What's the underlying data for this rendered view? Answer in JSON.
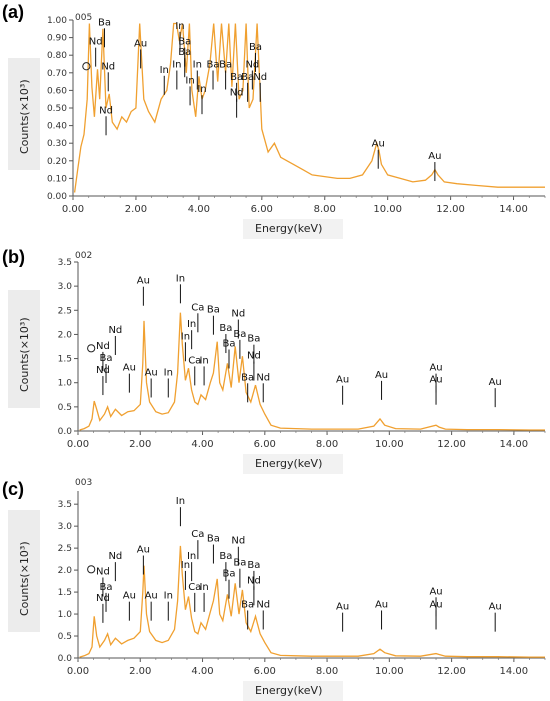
{
  "chart_data": [
    {
      "type": "line",
      "panel": "(a)",
      "spectrum_id": "005",
      "xlabel": "Energy(keV)",
      "ylabel": "Counts(×10³)",
      "xlim": [
        0,
        15
      ],
      "ylim": [
        0,
        1.0
      ],
      "xticks": [
        "0.00",
        "2.00",
        "4.00",
        "6.00",
        "8.00",
        "10.00",
        "12.00",
        "14.00"
      ],
      "yticks": [
        "0.00",
        "0.10",
        "0.20",
        "0.30",
        "0.40",
        "0.50",
        "0.60",
        "0.70",
        "0.80",
        "0.90",
        "1.00"
      ],
      "color": "#f0a030",
      "series": [
        {
          "x": [
            0.05,
            0.15,
            0.25,
            0.35,
            0.45,
            0.52,
            0.6,
            0.68,
            0.78,
            0.85,
            0.95,
            1.05,
            1.15,
            1.25,
            1.4,
            1.55,
            1.7,
            1.85,
            2.0,
            2.12,
            2.25,
            2.4,
            2.6,
            2.8,
            2.98,
            3.1,
            3.2,
            3.29,
            3.38,
            3.48,
            3.6,
            3.7,
            3.78,
            3.9,
            4.0,
            4.1,
            4.2,
            4.35,
            4.47,
            4.6,
            4.72,
            4.85,
            4.95,
            5.05,
            5.16,
            5.28,
            5.4,
            5.5,
            5.6,
            5.72,
            5.85,
            6.0,
            6.2,
            6.4,
            6.6,
            6.8,
            7.0,
            7.3,
            7.6,
            8.0,
            8.4,
            8.8,
            9.2,
            9.5,
            9.65,
            9.72,
            9.8,
            10.0,
            10.4,
            10.8,
            11.2,
            11.4,
            11.5,
            11.6,
            11.8,
            12.2,
            12.8,
            13.5,
            14.2,
            15.0
          ],
          "y": [
            0.02,
            0.15,
            0.28,
            0.35,
            0.55,
            0.98,
            0.62,
            0.45,
            0.72,
            0.55,
            0.95,
            0.5,
            0.58,
            0.42,
            0.38,
            0.45,
            0.42,
            0.48,
            0.5,
            0.98,
            0.55,
            0.48,
            0.42,
            0.55,
            0.6,
            0.75,
            0.98,
            0.98,
            0.88,
            0.98,
            0.7,
            0.98,
            0.6,
            0.45,
            0.68,
            0.55,
            0.6,
            0.75,
            0.98,
            0.65,
            0.98,
            0.7,
            0.98,
            0.62,
            0.98,
            0.55,
            0.6,
            0.98,
            0.5,
            0.55,
            0.98,
            0.38,
            0.25,
            0.3,
            0.22,
            0.2,
            0.18,
            0.15,
            0.12,
            0.11,
            0.1,
            0.1,
            0.12,
            0.2,
            0.3,
            0.26,
            0.18,
            0.12,
            0.1,
            0.08,
            0.09,
            0.12,
            0.15,
            0.12,
            0.08,
            0.07,
            0.06,
            0.05,
            0.05,
            0.05
          ]
        }
      ],
      "annotations": [
        {
          "label": "O",
          "x": 0.52,
          "y": 0.72,
          "circle": true
        },
        {
          "label": "Ba",
          "x": 1.0,
          "y": 0.97
        },
        {
          "label": "Nd",
          "x": 0.72,
          "y": 0.86
        },
        {
          "label": "Nd",
          "x": 1.12,
          "y": 0.72
        },
        {
          "label": "Nd",
          "x": 1.05,
          "y": 0.47
        },
        {
          "label": "Au",
          "x": 2.15,
          "y": 0.85
        },
        {
          "label": "In",
          "x": 2.9,
          "y": 0.7
        },
        {
          "label": "In",
          "x": 3.4,
          "y": 0.95
        },
        {
          "label": "In",
          "x": 3.3,
          "y": 0.73
        },
        {
          "label": "Ba",
          "x": 3.55,
          "y": 0.86
        },
        {
          "label": "Ba",
          "x": 3.55,
          "y": 0.8
        },
        {
          "label": "In",
          "x": 3.72,
          "y": 0.64
        },
        {
          "label": "In",
          "x": 3.95,
          "y": 0.73
        },
        {
          "label": "In",
          "x": 4.1,
          "y": 0.59
        },
        {
          "label": "Ba",
          "x": 4.45,
          "y": 0.73
        },
        {
          "label": "Ba",
          "x": 4.85,
          "y": 0.73
        },
        {
          "label": "Ba",
          "x": 5.2,
          "y": 0.66
        },
        {
          "label": "Nd",
          "x": 5.2,
          "y": 0.57
        },
        {
          "label": "Ba",
          "x": 5.55,
          "y": 0.66
        },
        {
          "label": "Nd",
          "x": 5.7,
          "y": 0.73
        },
        {
          "label": "Nd",
          "x": 5.95,
          "y": 0.66
        },
        {
          "label": "Ba",
          "x": 5.8,
          "y": 0.83
        },
        {
          "label": "Au",
          "x": 9.7,
          "y": 0.28
        },
        {
          "label": "Au",
          "x": 11.5,
          "y": 0.21
        }
      ]
    },
    {
      "type": "line",
      "panel": "(b)",
      "spectrum_id": "002",
      "xlabel": "Energy(keV)",
      "ylabel": "Counts(×10³)",
      "xlim": [
        0,
        15
      ],
      "ylim": [
        0,
        3.5
      ],
      "xticks": [
        "0.00",
        "2.00",
        "4.00",
        "6.00",
        "8.00",
        "10.00",
        "12.00",
        "14.00"
      ],
      "yticks": [
        "0.0",
        "0.5",
        "1.0",
        "1.5",
        "2.0",
        "2.5",
        "3.0",
        "3.5"
      ],
      "color": "#f0a030",
      "series": [
        {
          "x": [
            0.05,
            0.2,
            0.35,
            0.45,
            0.52,
            0.6,
            0.7,
            0.85,
            0.95,
            1.05,
            1.2,
            1.4,
            1.6,
            1.8,
            2.0,
            2.08,
            2.12,
            2.2,
            2.3,
            2.5,
            2.7,
            2.9,
            3.1,
            3.2,
            3.29,
            3.35,
            3.45,
            3.55,
            3.65,
            3.75,
            3.85,
            3.95,
            4.1,
            4.25,
            4.35,
            4.47,
            4.55,
            4.65,
            4.8,
            4.92,
            5.05,
            5.17,
            5.28,
            5.4,
            5.55,
            5.7,
            5.85,
            6.0,
            6.2,
            6.5,
            7.0,
            7.5,
            8.0,
            8.5,
            9.0,
            9.5,
            9.7,
            9.85,
            10.2,
            11.0,
            11.5,
            11.6,
            11.8,
            12.5,
            13.5,
            14.5,
            15.0
          ],
          "y": [
            0.02,
            0.05,
            0.1,
            0.25,
            0.62,
            0.45,
            0.22,
            0.35,
            0.5,
            0.3,
            0.45,
            0.32,
            0.4,
            0.42,
            0.55,
            1.4,
            2.28,
            1.0,
            0.6,
            0.4,
            0.35,
            0.38,
            0.6,
            1.2,
            2.45,
            1.8,
            1.05,
            1.3,
            0.85,
            0.6,
            0.55,
            0.75,
            0.65,
            1.0,
            1.2,
            1.85,
            1.0,
            0.85,
            1.4,
            0.9,
            1.75,
            1.0,
            1.55,
            0.8,
            0.6,
            0.95,
            0.55,
            0.35,
            0.12,
            0.06,
            0.05,
            0.04,
            0.04,
            0.04,
            0.04,
            0.1,
            0.25,
            0.12,
            0.05,
            0.04,
            0.12,
            0.08,
            0.04,
            0.03,
            0.03,
            0.02,
            0.02
          ]
        }
      ],
      "annotations": [
        {
          "label": "O",
          "x": 0.52,
          "y": 1.65,
          "circle": true
        },
        {
          "label": "Nd",
          "x": 0.8,
          "y": 1.7
        },
        {
          "label": "Nd",
          "x": 1.2,
          "y": 2.03
        },
        {
          "label": "Ba",
          "x": 0.9,
          "y": 1.45
        },
        {
          "label": "Nd",
          "x": 0.8,
          "y": 1.2
        },
        {
          "label": "Au",
          "x": 1.65,
          "y": 1.25
        },
        {
          "label": "Au",
          "x": 2.1,
          "y": 3.05
        },
        {
          "label": "Au",
          "x": 2.35,
          "y": 1.15
        },
        {
          "label": "In",
          "x": 2.9,
          "y": 1.15
        },
        {
          "label": "In",
          "x": 3.29,
          "y": 3.1
        },
        {
          "label": "In",
          "x": 3.45,
          "y": 1.9
        },
        {
          "label": "In",
          "x": 3.65,
          "y": 2.15
        },
        {
          "label": "Ca",
          "x": 3.85,
          "y": 2.5
        },
        {
          "label": "Ca",
          "x": 3.75,
          "y": 1.4
        },
        {
          "label": "In",
          "x": 4.05,
          "y": 1.4
        },
        {
          "label": "Ba",
          "x": 4.35,
          "y": 2.45
        },
        {
          "label": "Ba",
          "x": 4.85,
          "y": 1.75
        },
        {
          "label": "Ba",
          "x": 4.75,
          "y": 2.07
        },
        {
          "label": "Nd",
          "x": 5.15,
          "y": 2.37
        },
        {
          "label": "Ba",
          "x": 5.2,
          "y": 1.95
        },
        {
          "label": "Ba",
          "x": 5.65,
          "y": 1.85
        },
        {
          "label": "Nd",
          "x": 5.65,
          "y": 1.5
        },
        {
          "label": "Ba",
          "x": 5.45,
          "y": 1.05
        },
        {
          "label": "Nd",
          "x": 5.95,
          "y": 1.05
        },
        {
          "label": "Au",
          "x": 8.5,
          "y": 1.0
        },
        {
          "label": "Au",
          "x": 9.75,
          "y": 1.1
        },
        {
          "label": "Au",
          "x": 11.5,
          "y": 1.25
        },
        {
          "label": "Au",
          "x": 11.5,
          "y": 1.0
        },
        {
          "label": "Au",
          "x": 13.4,
          "y": 0.95
        }
      ]
    },
    {
      "type": "line",
      "panel": "(c)",
      "spectrum_id": "003",
      "xlabel": "Energy(keV)",
      "ylabel": "Counts(×10³)",
      "xlim": [
        0,
        15
      ],
      "ylim": [
        0,
        3.8
      ],
      "xticks": [
        "0.00",
        "2.00",
        "4.00",
        "6.00",
        "8.00",
        "10.00",
        "12.00",
        "14.00"
      ],
      "yticks": [
        "0.0",
        "0.5",
        "1.0",
        "1.5",
        "2.0",
        "2.5",
        "3.0",
        "3.5"
      ],
      "color": "#f0a030",
      "series": [
        {
          "x": [
            0.05,
            0.2,
            0.35,
            0.45,
            0.52,
            0.6,
            0.7,
            0.85,
            0.95,
            1.05,
            1.2,
            1.4,
            1.6,
            1.8,
            2.0,
            2.08,
            2.12,
            2.2,
            2.3,
            2.5,
            2.7,
            2.9,
            3.1,
            3.2,
            3.29,
            3.35,
            3.45,
            3.55,
            3.65,
            3.75,
            3.85,
            3.95,
            4.1,
            4.25,
            4.35,
            4.47,
            4.55,
            4.65,
            4.8,
            4.92,
            5.05,
            5.17,
            5.28,
            5.4,
            5.55,
            5.7,
            5.85,
            6.0,
            6.2,
            6.5,
            7.0,
            7.5,
            8.0,
            8.5,
            9.0,
            9.5,
            9.7,
            9.85,
            10.2,
            11.0,
            11.5,
            11.6,
            11.8,
            12.5,
            13.5,
            14.5,
            15.0
          ],
          "y": [
            0.02,
            0.05,
            0.1,
            0.25,
            0.95,
            0.5,
            0.25,
            0.4,
            0.55,
            0.3,
            0.45,
            0.32,
            0.4,
            0.45,
            0.6,
            1.5,
            2.1,
            1.0,
            0.6,
            0.4,
            0.35,
            0.4,
            0.65,
            1.3,
            2.55,
            1.9,
            1.1,
            1.4,
            0.9,
            0.6,
            0.55,
            0.8,
            0.65,
            1.05,
            1.3,
            1.8,
            1.0,
            0.85,
            1.45,
            0.95,
            1.7,
            1.0,
            1.55,
            0.8,
            0.6,
            0.95,
            0.55,
            0.35,
            0.12,
            0.06,
            0.05,
            0.04,
            0.04,
            0.04,
            0.04,
            0.1,
            0.2,
            0.12,
            0.05,
            0.04,
            0.1,
            0.08,
            0.04,
            0.03,
            0.03,
            0.02,
            0.02
          ]
        }
      ],
      "annotations": [
        {
          "label": "O",
          "x": 0.52,
          "y": 1.95,
          "circle": true
        },
        {
          "label": "Nd",
          "x": 0.8,
          "y": 1.9
        },
        {
          "label": "Nd",
          "x": 1.2,
          "y": 2.25
        },
        {
          "label": "Ba",
          "x": 0.9,
          "y": 1.55
        },
        {
          "label": "Nd",
          "x": 0.8,
          "y": 1.3
        },
        {
          "label": "Au",
          "x": 1.65,
          "y": 1.35
        },
        {
          "label": "Au",
          "x": 2.1,
          "y": 2.4
        },
        {
          "label": "Au",
          "x": 2.35,
          "y": 1.35
        },
        {
          "label": "In",
          "x": 2.9,
          "y": 1.35
        },
        {
          "label": "In",
          "x": 3.29,
          "y": 3.5
        },
        {
          "label": "In",
          "x": 3.45,
          "y": 2.05
        },
        {
          "label": "In",
          "x": 3.65,
          "y": 2.25
        },
        {
          "label": "Ca",
          "x": 3.85,
          "y": 2.75
        },
        {
          "label": "Ca",
          "x": 3.75,
          "y": 1.55
        },
        {
          "label": "In",
          "x": 4.05,
          "y": 1.55
        },
        {
          "label": "Ba",
          "x": 4.35,
          "y": 2.65
        },
        {
          "label": "Ba",
          "x": 4.85,
          "y": 1.85
        },
        {
          "label": "Ba",
          "x": 4.75,
          "y": 2.25
        },
        {
          "label": "Nd",
          "x": 5.15,
          "y": 2.6
        },
        {
          "label": "Ba",
          "x": 5.2,
          "y": 2.1
        },
        {
          "label": "Ba",
          "x": 5.65,
          "y": 2.05
        },
        {
          "label": "Nd",
          "x": 5.65,
          "y": 1.7
        },
        {
          "label": "Ba",
          "x": 5.45,
          "y": 1.15
        },
        {
          "label": "Nd",
          "x": 5.95,
          "y": 1.15
        },
        {
          "label": "Au",
          "x": 8.5,
          "y": 1.1
        },
        {
          "label": "Au",
          "x": 9.75,
          "y": 1.15
        },
        {
          "label": "Au",
          "x": 11.5,
          "y": 1.45
        },
        {
          "label": "Au",
          "x": 11.5,
          "y": 1.15
        },
        {
          "label": "Au",
          "x": 13.4,
          "y": 1.1
        }
      ]
    }
  ]
}
